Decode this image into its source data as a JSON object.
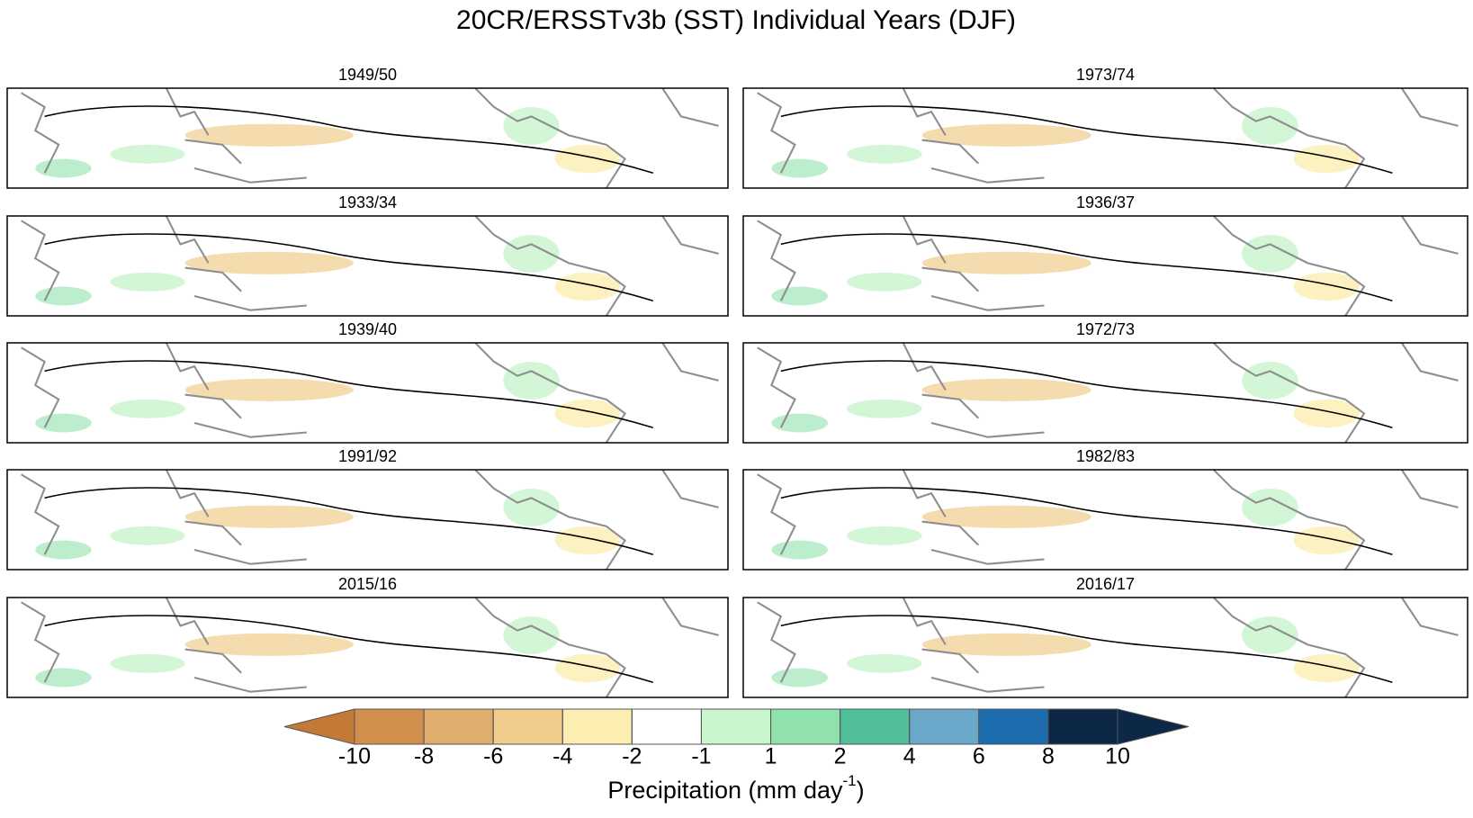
{
  "title": "20CR/ERSSTv3b (SST) Individual Years (DJF)",
  "panels": [
    {
      "title": "1949/50"
    },
    {
      "title": "1973/74"
    },
    {
      "title": "1933/34"
    },
    {
      "title": "1936/37"
    },
    {
      "title": "1939/40"
    },
    {
      "title": "1972/73"
    },
    {
      "title": "1991/92"
    },
    {
      "title": "1982/83"
    },
    {
      "title": "2015/16"
    },
    {
      "title": "2016/17"
    }
  ],
  "colorbar": {
    "levels": [
      -10,
      -8,
      -6,
      -4,
      -2,
      -1,
      1,
      2,
      4,
      6,
      8,
      10
    ],
    "colors": [
      "#c27a36",
      "#d08f4c",
      "#e0ae6c",
      "#f0cd8d",
      "#fbeeb0",
      "#ffffff",
      "#c8f5cc",
      "#8fe2ad",
      "#50bf99",
      "#6aa8c9",
      "#1d6cad",
      "#0c2846"
    ],
    "label": "Precipitation (mm day",
    "label_superscript": "-1",
    "label_end": ")"
  }
}
